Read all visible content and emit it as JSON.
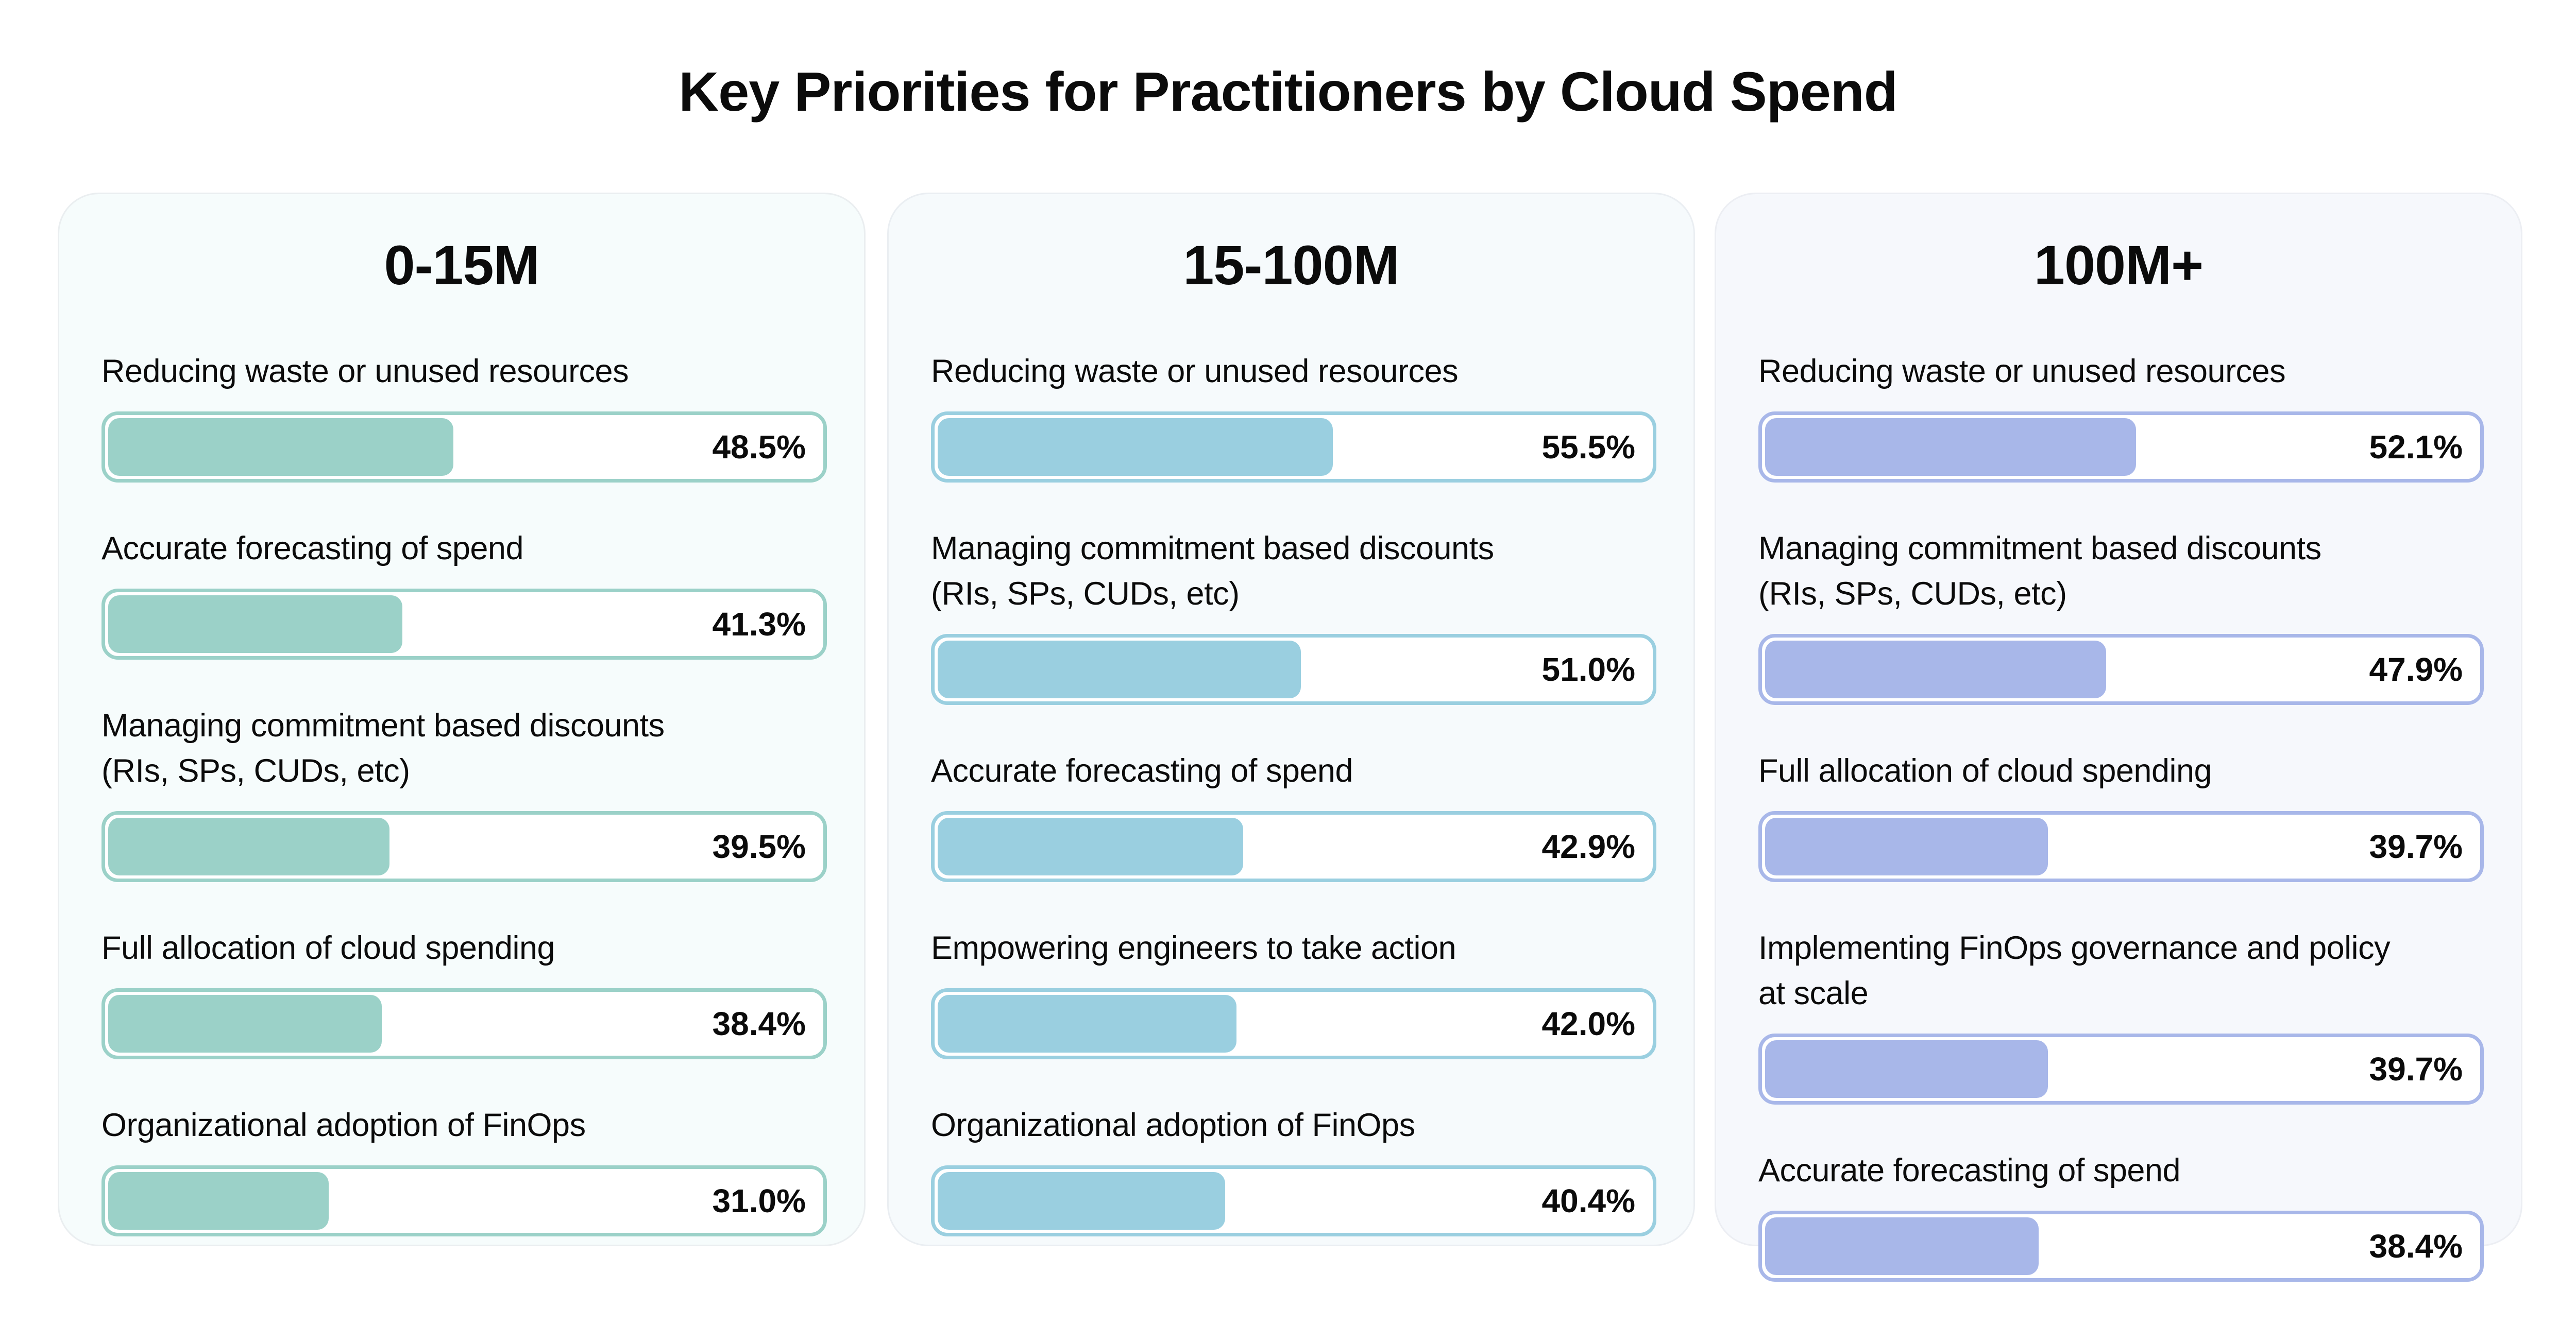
{
  "title": "Key Priorities for Practitioners by Cloud Spend",
  "chart_data": {
    "type": "bar",
    "orientation": "horizontal",
    "title": "Key Priorities for Practitioners by Cloud Spend",
    "value_unit": "%",
    "xlim": [
      0,
      100
    ],
    "panels": [
      {
        "name": "0-15M",
        "color": "#9bd1c8",
        "border_color": "#9bd1c8",
        "background": "#f6fcfc",
        "items": [
          {
            "label": "Reducing waste or unused resources",
            "value": 48.5,
            "display": "48.5%"
          },
          {
            "label": "Accurate forecasting of spend",
            "value": 41.3,
            "display": "41.3%"
          },
          {
            "label": "Managing commitment based discounts\n(RIs, SPs, CUDs, etc)",
            "value": 39.5,
            "display": "39.5%"
          },
          {
            "label": "Full allocation of cloud spending",
            "value": 38.4,
            "display": "38.4%"
          },
          {
            "label": "Organizational adoption of FinOps",
            "value": 31.0,
            "display": "31.0%"
          }
        ]
      },
      {
        "name": "15-100M",
        "color": "#9acfe0",
        "border_color": "#9acfe0",
        "background": "#f6fafc",
        "items": [
          {
            "label": "Reducing waste or unused resources",
            "value": 55.5,
            "display": "55.5%"
          },
          {
            "label": "Managing commitment based discounts\n(RIs, SPs, CUDs, etc)",
            "value": 51.0,
            "display": "51.0%"
          },
          {
            "label": "Accurate forecasting of spend",
            "value": 42.9,
            "display": "42.9%"
          },
          {
            "label": "Empowering engineers to take action",
            "value": 42.0,
            "display": "42.0%"
          },
          {
            "label": "Organizational adoption of FinOps",
            "value": 40.4,
            "display": "40.4%"
          }
        ]
      },
      {
        "name": "100M+",
        "color": "#a8b7e9",
        "border_color": "#a8b7e9",
        "background": "#f6f8fc",
        "items": [
          {
            "label": "Reducing waste or unused resources",
            "value": 52.1,
            "display": "52.1%"
          },
          {
            "label": "Managing commitment based discounts\n(RIs, SPs, CUDs, etc)",
            "value": 47.9,
            "display": "47.9%"
          },
          {
            "label": "Full allocation of cloud spending",
            "value": 39.7,
            "display": "39.7%"
          },
          {
            "label": "Implementing FinOps governance and policy\nat scale",
            "value": 39.7,
            "display": "39.7%"
          },
          {
            "label": "Accurate forecasting of spend",
            "value": 38.4,
            "display": "38.4%"
          }
        ]
      }
    ]
  }
}
